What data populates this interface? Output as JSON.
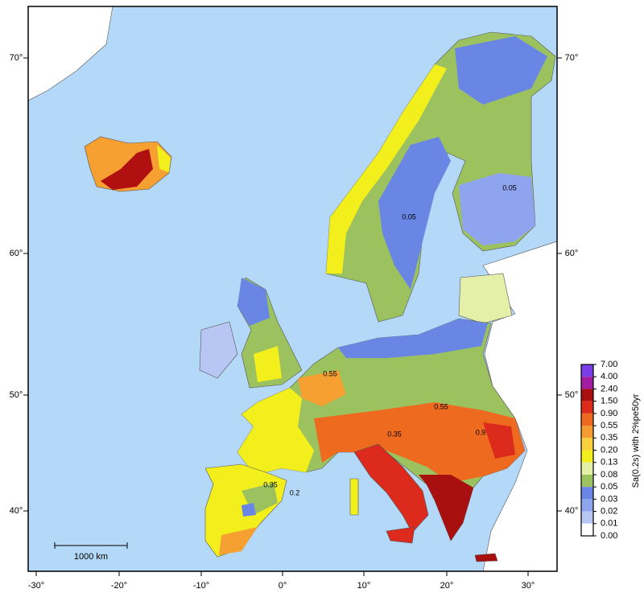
{
  "map": {
    "x_axis_labels": [
      "-30°",
      "-20°",
      "-10°",
      "0°",
      "10°",
      "20°",
      "30°"
    ],
    "y_axis_labels": [
      "70°",
      "60°",
      "50°",
      "40°"
    ],
    "scale_bar": "1000 km",
    "contour_labels": [
      "0.05",
      "0.05",
      "0.55",
      "0.35",
      "0.2",
      "0.55",
      "0.35",
      "0.9"
    ],
    "colorbar": {
      "title": "Sa(0.2s) with 2%pe50yr",
      "labels": [
        "7.00",
        "4.00",
        "2.40",
        "1.50",
        "0.90",
        "0.55",
        "0.35",
        "0.20",
        "0.13",
        "0.08",
        "0.05",
        "0.03",
        "0.02",
        "0.01",
        "0.00"
      ],
      "colors": [
        "#7a3fe6",
        "#a01ca0",
        "#a81010",
        "#dc2a1c",
        "#ee6a1e",
        "#f59c30",
        "#f8cf3c",
        "#f2ef1c",
        "#e4f0a8",
        "#9cc260",
        "#6a86e4",
        "#8ea4ee",
        "#b8c6f4",
        "#ffffff"
      ]
    }
  }
}
